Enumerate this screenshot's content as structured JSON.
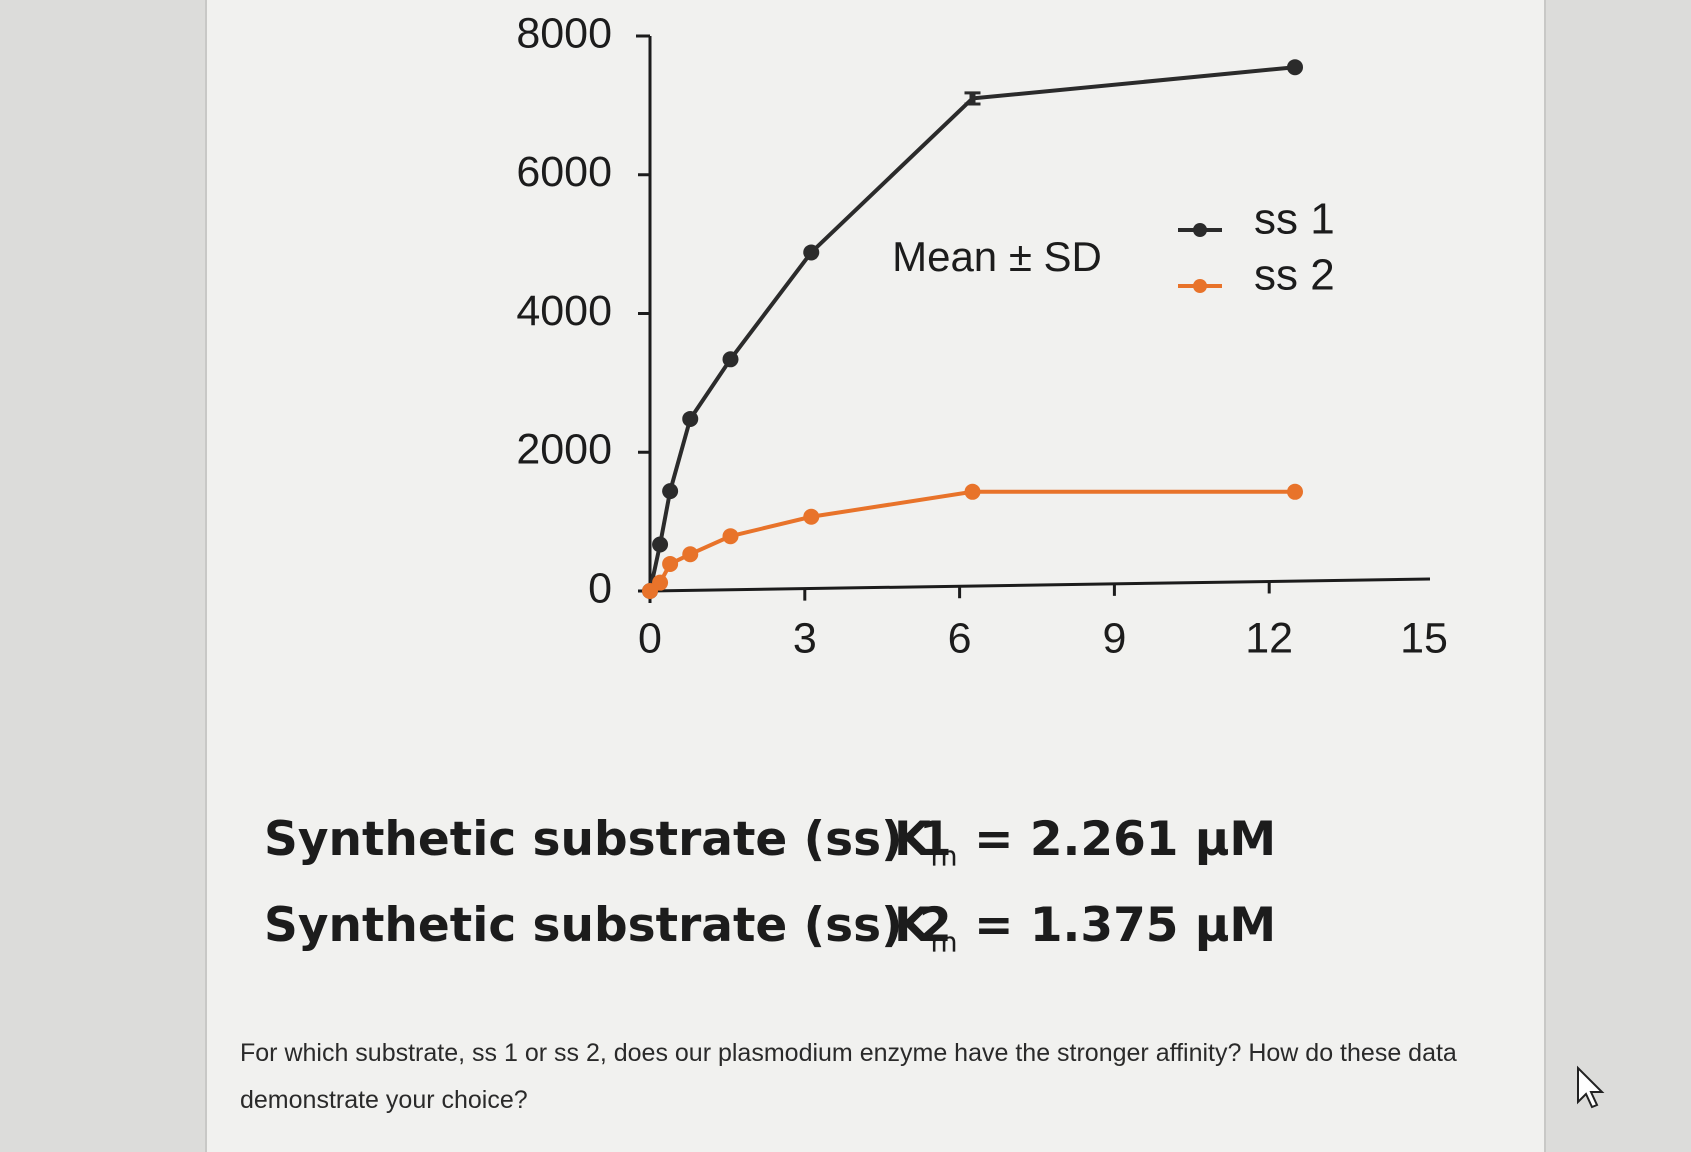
{
  "chart_data": {
    "type": "line",
    "annotation": "Mean ± SD",
    "x": [
      0,
      0.195,
      0.39,
      0.78,
      1.56,
      3.125,
      6.25,
      12.5
    ],
    "series": [
      {
        "name": "ss 1",
        "color": "#2b2b2b",
        "values": [
          0,
          670,
          1440,
          2480,
          3340,
          4880,
          7100,
          7550
        ],
        "errors": [
          null,
          null,
          null,
          null,
          null,
          null,
          80,
          null
        ]
      },
      {
        "name": "ss 2",
        "color": "#e8732a",
        "values": [
          0,
          120,
          390,
          530,
          790,
          1070,
          1430,
          1430
        ]
      }
    ],
    "xlim": [
      0,
      15
    ],
    "xticks": [
      0,
      3,
      6,
      9,
      12,
      15
    ],
    "ylim": [
      0,
      8000
    ],
    "yticks": [
      0,
      2000,
      4000,
      6000,
      8000
    ]
  },
  "km_lines": [
    {
      "substrate": "Synthetic substrate (ss) 1",
      "symbol": "K",
      "subscript": "m",
      "value": "= 2.261 μM"
    },
    {
      "substrate": "Synthetic substrate (ss) 2",
      "symbol": "K",
      "subscript": "m",
      "value": "= 1.375 μM"
    }
  ],
  "question": "For which substrate, ss 1 or ss 2, does our plasmodium enzyme have the stronger affinity? How do these data demonstrate your choice?"
}
